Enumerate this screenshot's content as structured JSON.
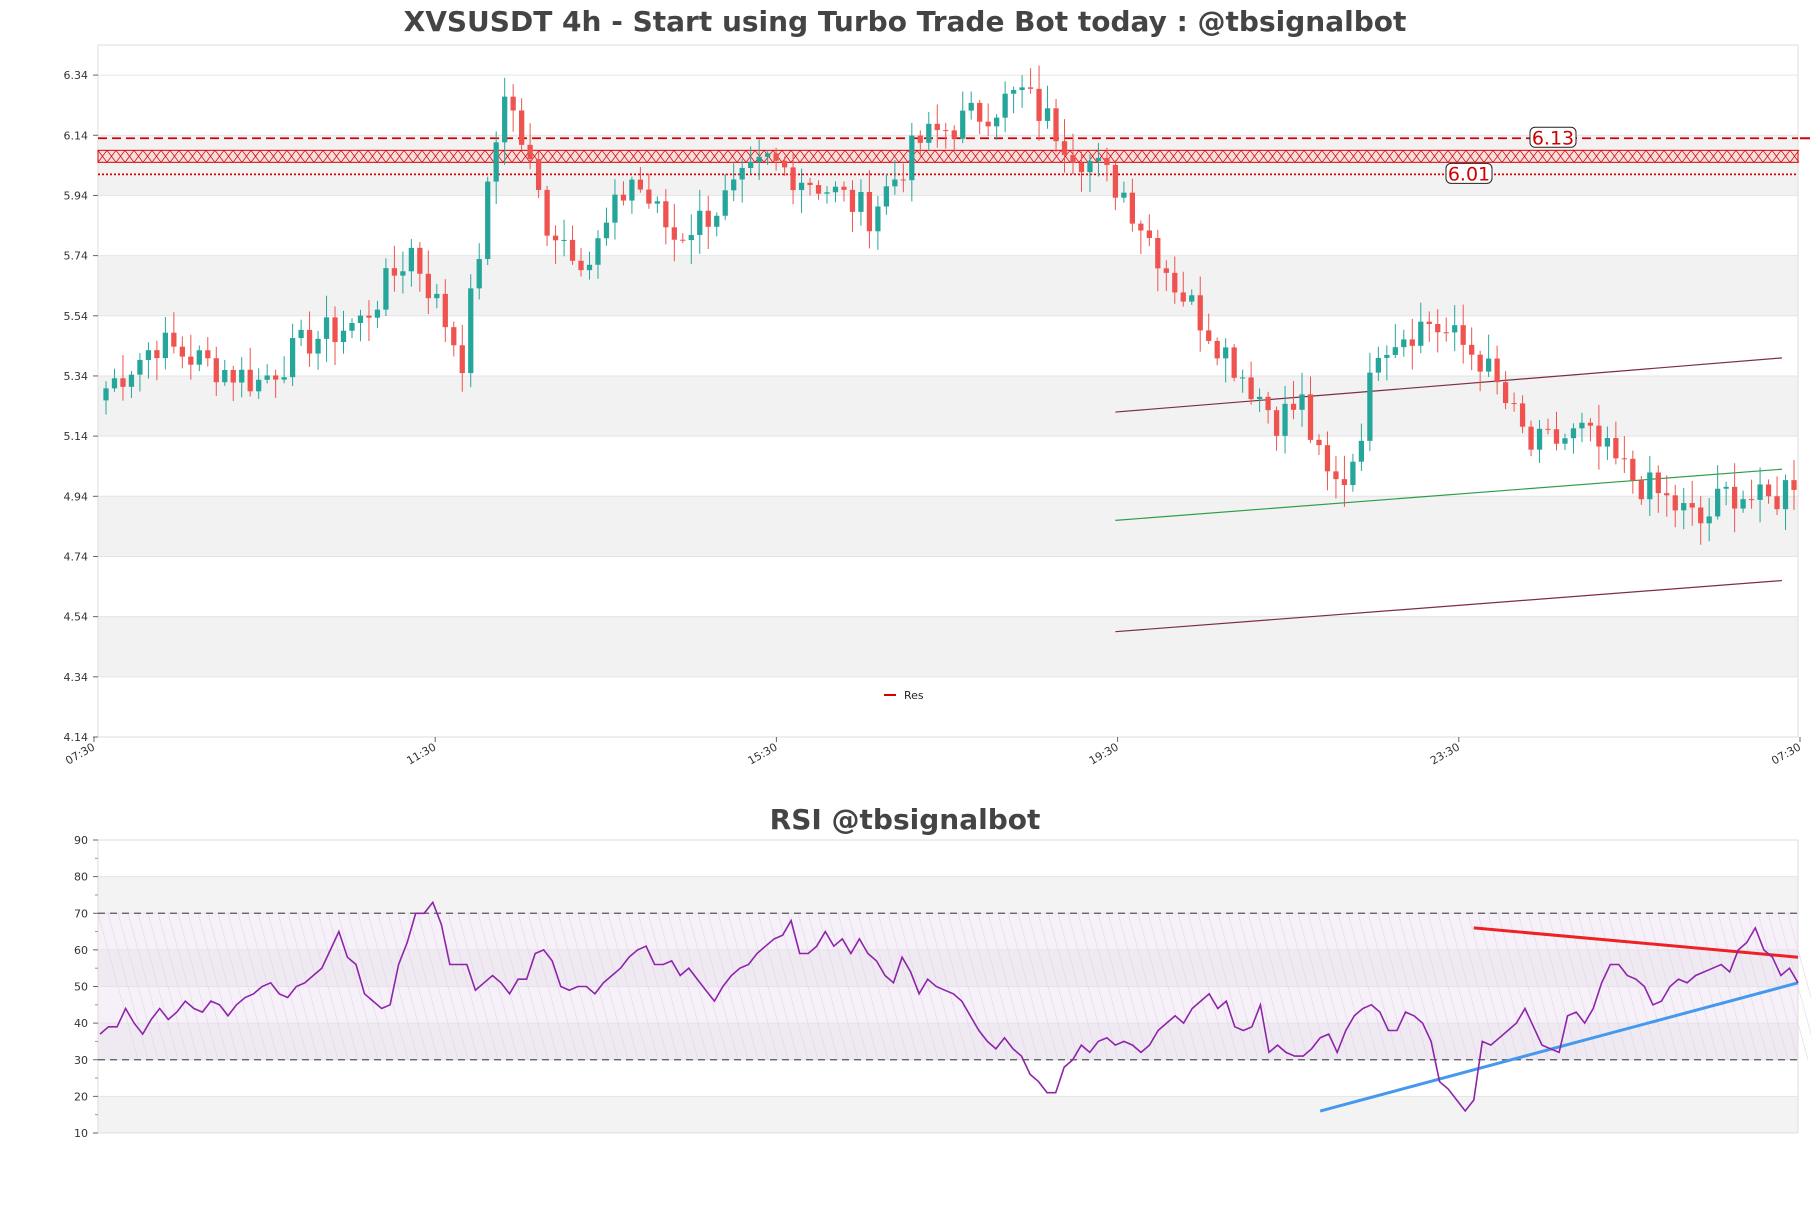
{
  "colors": {
    "up": "#26a69a",
    "down": "#ef5350",
    "resistance": "#d50000",
    "channel": "#7b3040",
    "midline": "#2e9e4a",
    "rsi": "#8e24aa",
    "rsi_trend_down": "#ee2222",
    "rsi_trend_up": "#4499ee"
  },
  "chart_data": [
    {
      "type": "candlestick",
      "title": "XVSUSDT 4h - Start using Turbo Trade Bot today : @tbsignalbot",
      "ylim": [
        4.14,
        6.44
      ],
      "yticks": [
        "4.14",
        "4.34",
        "4.54",
        "4.74",
        "4.94",
        "5.14",
        "5.34",
        "5.54",
        "5.74",
        "5.94",
        "6.14",
        "6.34"
      ],
      "xticks": [
        "07:30",
        "11:30",
        "15:30",
        "19:30",
        "23:30",
        "07:30"
      ],
      "n_candles": 200,
      "close_anchors": [
        [
          0,
          5.3
        ],
        [
          6,
          5.45
        ],
        [
          12,
          5.38
        ],
        [
          18,
          5.32
        ],
        [
          24,
          5.46
        ],
        [
          30,
          5.52
        ],
        [
          36,
          5.76
        ],
        [
          42,
          5.4
        ],
        [
          47,
          6.3
        ],
        [
          52,
          5.85
        ],
        [
          57,
          5.72
        ],
        [
          62,
          6.0
        ],
        [
          67,
          5.8
        ],
        [
          72,
          5.9
        ],
        [
          78,
          6.05
        ],
        [
          84,
          5.98
        ],
        [
          90,
          5.88
        ],
        [
          96,
          6.12
        ],
        [
          102,
          6.2
        ],
        [
          108,
          6.28
        ],
        [
          114,
          6.1
        ],
        [
          120,
          5.95
        ],
        [
          126,
          5.65
        ],
        [
          132,
          5.42
        ],
        [
          138,
          5.2
        ],
        [
          144,
          5.3
        ],
        [
          150,
          5.45
        ],
        [
          156,
          5.52
        ],
        [
          162,
          5.4
        ],
        [
          168,
          5.1
        ],
        [
          174,
          5.15
        ],
        [
          180,
          5.0
        ],
        [
          188,
          4.85
        ]
      ],
      "resistance": [
        {
          "label": "6.13",
          "value": 6.13,
          "style": "dashed"
        },
        {
          "label": "",
          "value": 6.07,
          "style": "hatched"
        },
        {
          "label": "6.01",
          "value": 6.01,
          "style": "dotted"
        }
      ],
      "channel": {
        "upper": [
          [
            5.22,
            5.4
          ]
        ],
        "middle": [
          [
            4.86,
            5.03
          ]
        ],
        "lower": [
          [
            4.49,
            4.66
          ]
        ]
      },
      "legend": [
        {
          "name": "Res"
        }
      ]
    },
    {
      "type": "line",
      "title": "RSI @tbsignalbot",
      "ylim": [
        10,
        90
      ],
      "yticks": [
        "10",
        "20",
        "30",
        "40",
        "50",
        "60",
        "70",
        "80",
        "90"
      ],
      "levels": [
        30,
        70
      ],
      "values": [
        37,
        39,
        39,
        44,
        40,
        37,
        41,
        44,
        41,
        43,
        46,
        44,
        43,
        46,
        45,
        42,
        45,
        47,
        48,
        50,
        51,
        48,
        47,
        50,
        51,
        53,
        55,
        60,
        65,
        58,
        56,
        48,
        46,
        44,
        45,
        56,
        62,
        70,
        70,
        73,
        67,
        56,
        56,
        56,
        49,
        51,
        53,
        51,
        48,
        52,
        52,
        59,
        60,
        57,
        50,
        49,
        50,
        50,
        48,
        51,
        53,
        55,
        58,
        60,
        61,
        56,
        56,
        57,
        53,
        55,
        52,
        49,
        46,
        50,
        53,
        55,
        56,
        59,
        61,
        63,
        64,
        68,
        59,
        59,
        61,
        65,
        61,
        63,
        59,
        63,
        59,
        57,
        53,
        51,
        58,
        54,
        48,
        52,
        50,
        49,
        48,
        46,
        42,
        38,
        35,
        33,
        36,
        33,
        31,
        26,
        24,
        21,
        21,
        28,
        30,
        34,
        32,
        35,
        36,
        34,
        35,
        34,
        32,
        34,
        38,
        40,
        42,
        40,
        44,
        46,
        48,
        44,
        46,
        39,
        38,
        39,
        45,
        32,
        34,
        32,
        31,
        31,
        33,
        36,
        37,
        32,
        38,
        42,
        44,
        45,
        43,
        38,
        38,
        43,
        42,
        40,
        35,
        24,
        22,
        19,
        16,
        19,
        35,
        34,
        36,
        38,
        40,
        44,
        39,
        34,
        33,
        32,
        42,
        43,
        40,
        44,
        51,
        56,
        56,
        53,
        52,
        50,
        45,
        46,
        50,
        52,
        51,
        53,
        54,
        55,
        56,
        54,
        60,
        62,
        66,
        60,
        58,
        53,
        55,
        51
      ],
      "trendlines": [
        {
          "name": "resistance",
          "points": [
            [
              161,
              66
            ],
            [
              199,
              58
            ]
          ]
        },
        {
          "name": "support",
          "points": [
            [
              143,
              16
            ],
            [
              199,
              51
            ]
          ]
        }
      ]
    }
  ]
}
